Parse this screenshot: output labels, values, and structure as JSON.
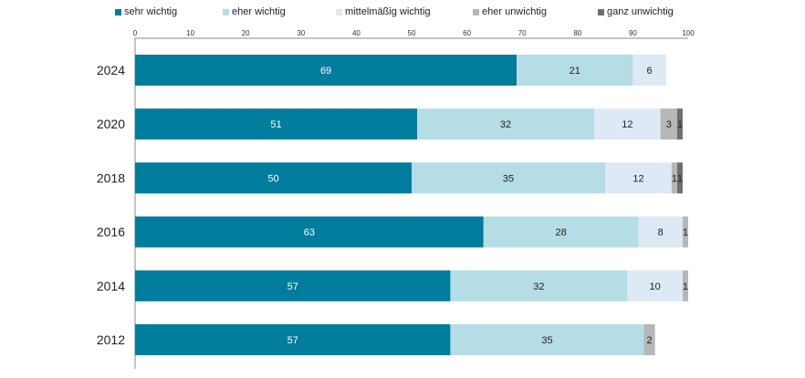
{
  "chart_data": {
    "type": "bar",
    "orientation": "horizontal",
    "stacked": true,
    "categories": [
      "2024",
      "2020",
      "2018",
      "2016",
      "2014",
      "2012"
    ],
    "series": [
      {
        "name": "sehr wichtig",
        "color": "#007c9c",
        "label_color": "#ffffff",
        "values": [
          69,
          51,
          50,
          63,
          57,
          57
        ]
      },
      {
        "name": "eher wichtig",
        "color": "#b5dde6",
        "label_color": "#222222",
        "values": [
          21,
          32,
          35,
          28,
          32,
          35
        ]
      },
      {
        "name": "mittelmäßig wichtig",
        "color": "#dde9f5",
        "label_color": "#222222",
        "values": [
          6,
          12,
          12,
          8,
          10,
          0
        ]
      },
      {
        "name": "eher unwichtig",
        "color": "#b7b7b7",
        "label_color": "#222222",
        "values": [
          0,
          3,
          1,
          1,
          1,
          2
        ]
      },
      {
        "name": "ganz unwichtig",
        "color": "#6e6e6e",
        "label_color": "#222222",
        "values": [
          0,
          1,
          1,
          0,
          0,
          0
        ]
      }
    ],
    "xlim": [
      0,
      100
    ],
    "xticks": [
      0,
      10,
      20,
      30,
      40,
      50,
      60,
      70,
      80,
      90,
      100
    ],
    "legend_position": "top",
    "grid": false
  }
}
